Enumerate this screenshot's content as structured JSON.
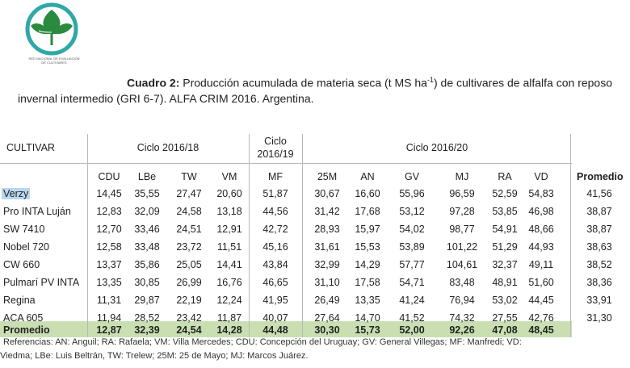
{
  "logo": {
    "brand": "Red Alfalfa",
    "org_line1": "RED NACIONAL DE EVALUACIÓN",
    "org_line2": "DE CULTIVARES",
    "colors": {
      "ring": "#2fa8a6",
      "leaf": "#2a8a3d",
      "bg": "#ffffff"
    }
  },
  "caption": {
    "label": "Cuadro 2:",
    "line1_rest": " Producción acumulada de materia seca (t MS ha",
    "superscript": "-1",
    "line1_end": ") de cultivares de alfalfa con reposo",
    "line2": "invernal intermedio (GRI 6-7). ALFA CRIM 2016. Argentina."
  },
  "table": {
    "cultivar_header": "CULTIVAR",
    "group1": "Ciclo 2016/18",
    "group2_line1": "Ciclo",
    "group2_line2": "2016/19",
    "group3": "Ciclo 2016/20",
    "columns": [
      "CDU",
      "LBe",
      "TW",
      "VM",
      "MF",
      "25M",
      "AN",
      "GV",
      "MJ",
      "RA",
      "VD",
      "Promedio"
    ],
    "rows": [
      {
        "name": "Verzy",
        "values": [
          "14,45",
          "35,55",
          "27,47",
          "20,60",
          "51,87",
          "30,67",
          "16,60",
          "55,96",
          "96,59",
          "52,59",
          "54,83",
          "41,56"
        ]
      },
      {
        "name": "Pro INTA Luján",
        "values": [
          "12,83",
          "32,09",
          "24,58",
          "13,18",
          "44,56",
          "31,42",
          "17,68",
          "53,12",
          "97,28",
          "53,85",
          "46,98",
          "38,87"
        ]
      },
      {
        "name": "SW 7410",
        "values": [
          "12,70",
          "33,46",
          "24,51",
          "12,91",
          "42,72",
          "28,93",
          "15,97",
          "54,02",
          "98,77",
          "54,91",
          "48,66",
          "38,87"
        ]
      },
      {
        "name": "Nobel 720",
        "values": [
          "12,58",
          "33,48",
          "23,72",
          "11,51",
          "45,16",
          "31,61",
          "15,53",
          "53,89",
          "101,22",
          "51,29",
          "44,93",
          "38,63"
        ]
      },
      {
        "name": "CW 660",
        "values": [
          "13,37",
          "35,86",
          "25,05",
          "14,41",
          "43,84",
          "32,99",
          "14,29",
          "57,77",
          "104,61",
          "32,37",
          "49,11",
          "38,52"
        ]
      },
      {
        "name": "Pulmarí PV INTA",
        "values": [
          "13,35",
          "30,85",
          "26,99",
          "16,76",
          "46,65",
          "31,10",
          "17,58",
          "54,71",
          "83,48",
          "48,91",
          "51,60",
          "38,36"
        ]
      },
      {
        "name": "Regina",
        "values": [
          "11,31",
          "29,87",
          "22,19",
          "12,24",
          "41,95",
          "26,49",
          "13,35",
          "41,24",
          "76,94",
          "53,02",
          "44,45",
          "33,91"
        ]
      },
      {
        "name": "ACA 605",
        "values": [
          "11,94",
          "28,52",
          "23,42",
          "11,87",
          "40,07",
          "27,64",
          "14,70",
          "41,52",
          "74,32",
          "27,55",
          "42,76",
          "31,30"
        ]
      }
    ],
    "promedio": {
      "name": "Promedio",
      "values": [
        "12,87",
        "32,39",
        "24,54",
        "14,28",
        "44,48",
        "30,30",
        "15,73",
        "52,00",
        "92,26",
        "47,08",
        "48,45"
      ]
    },
    "colors": {
      "promedio_band": "#c9dfb2",
      "verzy_highlight": "#b9d7ee",
      "rules": "#b9b9b9"
    }
  },
  "references": {
    "line1": "Referencias: AN: Anguil; RA: Rafaela; VM: Villa Mercedes; CDU: Concepción del Uruguay; GV: General Villegas; MF: Manfredi; VD:",
    "line2": "Viedma; LBe: Luis Beltrán, TW: Trelew; 25M: 25 de Mayo; MJ: Marcos Juárez."
  }
}
